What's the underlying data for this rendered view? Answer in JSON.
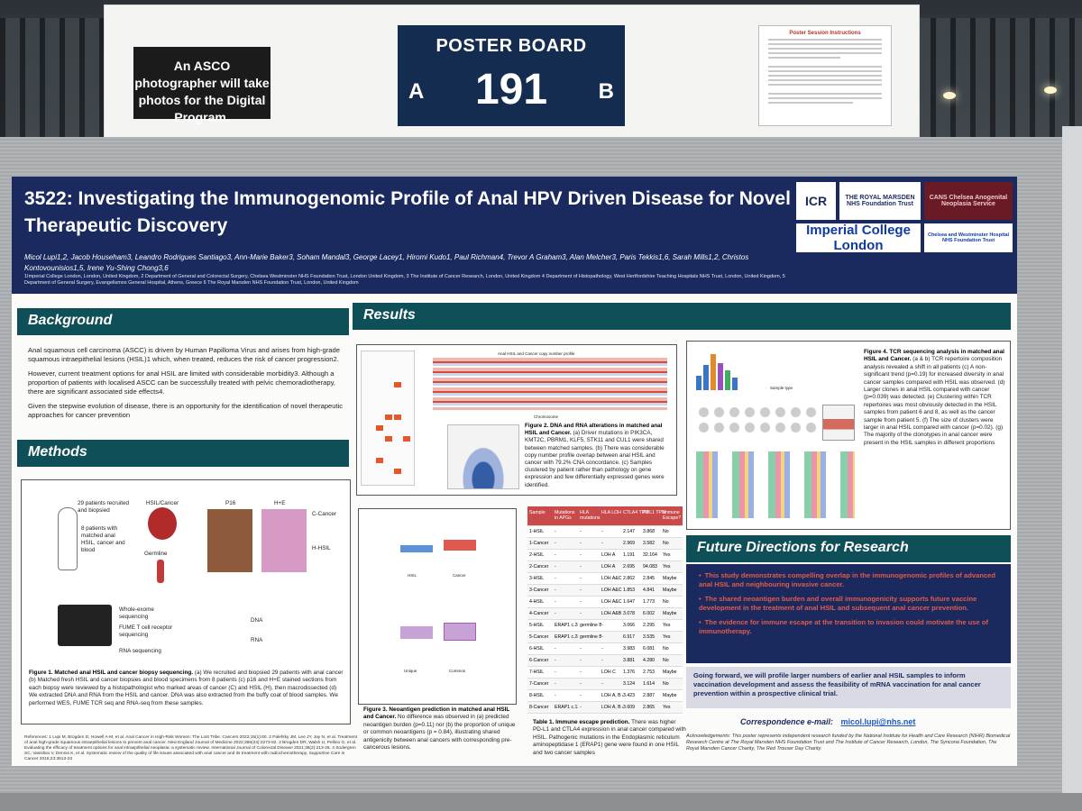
{
  "header": {
    "photo_note": "An ASCO photographer will take photos for the Digital Program.",
    "board_label": "POSTER BOARD",
    "board_number": "191",
    "side_a": "A",
    "side_b": "B",
    "instructions_title": "Poster Session Instructions"
  },
  "poster": {
    "title": "3522: Investigating the Immunogenomic Profile of Anal HPV Driven Disease for Novel Therapeutic Discovery",
    "authors": "Micol Lupi1,2, Jacob Househam3, Leandro Rodrigues Santiago3, Ann-Marie Baker3, Soham Mandal3, George Lacey1, Hiromi Kudo1, Paul Richman4, Trevor A Graham3, Alan Melcher3, Paris Tekkis1,6, Sarah Mills1,2, Christos Kontovounisios1,5, Irene Yu-Shing Chong3,6",
    "affiliations": "1Imperial College London, London, United Kingdom, 2 Department of General and Colorectal Surgery, Chelsea Westminster NHS Foundation Trust, London United Kingdom, 3 The Institute of Cancer Research, London, United Kingdom 4 Department of Histopathology, West Hertfordshire Teaching Hospitals NHS Trust, London, United Kingdom, 5 Department of General Surgery, Evangelismos General Hospital, Athens, Greece 6 The Royal Marsden NHS Foundation Trust, London, United Kingdom",
    "logos": {
      "icr": "ICR",
      "royal_marsden": "THE ROYAL MARSDEN NHS Foundation Trust",
      "imperial": "Imperial College London",
      "cans": "CANS Chelsea Anogenital Neoplasia Service",
      "chelsea": "Chelsea and Westminster Hospital NHS Foundation Trust"
    },
    "background": {
      "heading": "Background",
      "p1": "Anal squamous cell carcinoma (ASCC) is driven by Human Papilloma Virus and arises from high-grade squamous intraepithelial lesions (HSIL)1 which, when treated, reduces the risk of cancer progression2.",
      "p2": "However, current treatment options for anal HSIL are limited with considerable morbidity3. Although a proportion of patients with localised ASCC can be successfully treated with pelvic chemoradiotherapy, there are significant associated side effects4.",
      "p3": "Given the stepwise evolution of disease, there is an opportunity for the identification of novel therapeutic approaches for cancer prevention"
    },
    "methods": {
      "heading": "Methods",
      "labels": {
        "recruited": "29 patients recruited and biopsied",
        "matched": "8 patients with matched anal HSIL, cancer and blood",
        "hsil_cancer": "HSIL/Cancer",
        "germline": "Germline",
        "p16": "P16",
        "he": "H+E",
        "c_cancer": "C-Cancer",
        "h_hsil": "H-HSIL",
        "wes": "Whole-exome sequencing",
        "fume": "FUME T cell receptor sequencing",
        "rna_seq": "RNA sequencing",
        "dna": "DNA",
        "rna": "RNA"
      },
      "caption_title": "Figure 1. Matched anal HSIL and cancer biopsy sequencing.",
      "caption": "(a) We recruited and biopsied 29 patients with anal cancer (b) Matched fresh HSIL and cancer biopsies and blood specimens from 8 patients (c) p16 and H+E stained sections from each biopsy were reviewed by a histopathologist who marked areas of cancer (C) and HSIL (H), then macrodissected (d) We extracted DNA and RNA from the HSIL and cancer. DNA was also extracted from the buffy coat of blood samples. We performed WES, FUME TCR seq and RNA-seq from these samples."
    },
    "references": "References: 1 Lupi M, Brogden D, Howell A-M, et al. Anal Cancer in High-Risk Women: The Lost Tribe. Cancers 2022;15(1):60. 2 Palefsky JM, Lee JY, Jay N, et al. Treatment of anal high-grade squamous intraepithelial lesions to prevent anal cancer. New England Journal of Medicine 2022;386(24):2273-82. 3 Brogden DR, Walsh U, Pellino G, et al. Evaluating the efficacy of treatment options for anal intraepithelial neoplasia: a systematic review. International Journal of Colorectal Disease 2021;36(2):213-26. 4 Sodergren SC, Vassiliou V, Dennis K, et al. Systematic review of the quality of life issues associated with anal cancer and its treatment with radiochemotherapy. Supportive Care in Cancer 2015;23:3613-23",
    "results": {
      "heading": "Results",
      "fig2_title": "Figure 2. DNA and RNA alterations in matched anal HSIL and Cancer.",
      "fig2_caption": "(a) Driver mutations in PIK3CA, KMT2C, PBRM1, KLF5, STK11 and CUL1 were shared between matched samples. (b) There was considerable copy number profile overlap between anal HSIL and cancer with 79.2% CNA concordance. (c) Samples clustered by patient rather than pathology on gene expression and few differentially expressed genes were identified.",
      "fig2_chart_title": "Anal HSIL and Cancer copy number profile",
      "fig2_axis": "Chromosome",
      "fig3_title": "Figure 3. Neoantigen prediction in matched anal HSIL and Cancer.",
      "fig3_caption": "No difference was observed in (a) predicted neoantigen burden (p=0.11) nor (b) the proportion of unique or common neoantigens (p = 0.84), illustrating shared antigenicity between anal cancers with corresponding pre-cancerous lesions.",
      "fig3_x1": "HSIL",
      "fig3_x2": "Cancer",
      "fig3_x3": "Unique",
      "fig3_x4": "Common",
      "table_title": "Table 1. Immune escape prediction.",
      "table_caption": "There was higher PD-L1 and CTLA4 expression in anal cancer compared with HSIL. Pathogenic mutations in the Endoplasmic reticulum aminopeptidase 1 (ERAP1) gene were found in one HSIL and two cancer samples",
      "table_headers": [
        "Sample",
        "Mutations in APGs",
        "HLA mutations",
        "HLA LOH",
        "CTLA4 TPM",
        "PDL1 TPM",
        "Immune Escape?"
      ],
      "table_rows": [
        [
          "1-HSIL",
          "-",
          "-",
          "-",
          "2.147",
          "3.868",
          "No"
        ],
        [
          "1-Cancer",
          "-",
          "-",
          "-",
          "2.969",
          "3.582",
          "No"
        ],
        [
          "2-HSIL",
          "-",
          "-",
          "LOH A",
          "1.191",
          "32.164",
          "Yes"
        ],
        [
          "2-Cancer",
          "-",
          "-",
          "LOH A",
          "2.695",
          "94.083",
          "Yes"
        ],
        [
          "3-HSIL",
          "-",
          "-",
          "LOH A&C",
          "2.862",
          "2.845",
          "Maybe"
        ],
        [
          "3-Cancer",
          "-",
          "-",
          "LOH A&C",
          "1.853",
          "4.841",
          "Maybe"
        ],
        [
          "4-HSIL",
          "-",
          "-",
          "LOH A&C",
          "1.647",
          "1.773",
          "No"
        ],
        [
          "4-Cancer",
          "-",
          "-",
          "LOH A&B",
          "3.078",
          "6.002",
          "Maybe"
        ],
        [
          "5-HSIL",
          "ERAP1 c.2818+2T>C (splice variant)",
          "germline B",
          "-",
          "3.066",
          "2.295",
          "Yes"
        ],
        [
          "5-Cancer",
          "ERAP1 c.2818+2T>C (splice variant)",
          "germline B",
          "-",
          "6.917",
          "3.535",
          "Yes"
        ],
        [
          "6-HSIL",
          "-",
          "-",
          "-",
          "3.983",
          "6.081",
          "No"
        ],
        [
          "6-Cancer",
          "-",
          "-",
          "-",
          "3.881",
          "4.280",
          "No"
        ],
        [
          "7-HSIL",
          "-",
          "-",
          "LOH C",
          "1.376",
          "2.753",
          "Maybe"
        ],
        [
          "7-Cancer",
          "-",
          "-",
          "-",
          "3.124",
          "1.614",
          "No"
        ],
        [
          "8-HSIL",
          "-",
          "-",
          "LOH A, B & C",
          "3.423",
          "2.887",
          "Maybe"
        ],
        [
          "8-Cancer",
          "ERAP1 c.1280G>C (missense)",
          "-",
          "LOH A, B & C",
          "3.609",
          "2.865",
          "Yes"
        ]
      ],
      "fig4_title": "Figure 4. TCR sequencing analysis in matched anal HSIL and Cancer.",
      "fig4_caption": "(a & b) TCR repertoire composition analysis revealed a shift in all patients (c) A non-significant trend (p=0.19) for increased diversity in anal cancer samples compared with HSIL was observed. (d) Larger clones in anal HSIL compared with cancer (p=0.039) was detected. (e) Clustering within TCR repertoires was most obviously detected in the HSIL samples from patient 6 and 8, as well as the cancer sample from patient 5. (f) The size of clusters were larger in anal HSIL compared with cancer (p=0.02). (g) The majority of the clonotypes in anal cancer were present in the HSIL samples in different proportions",
      "fig4_sample_type": "Sample type"
    },
    "future": {
      "heading": "Future Directions for Research",
      "bullets": [
        "This study demonstrates compelling overlap in the immunogenomic profiles of advanced anal HSIL and neighbouring invasive cancer.",
        "The shared neoantigen burden and overall immunogenicity supports future vaccine development in the treatment of anal HSIL and subsequent anal cancer prevention.",
        "The evidence for immune escape at the transition to invasion could motivate the use of immunotherapy."
      ],
      "going_forward": "Going forward, we will profile larger numbers of earlier anal HSIL samples to inform vaccination development and assess the feasibility of mRNA vaccination for anal cancer prevention within a prospective clinical trial.",
      "email_label": "Correspondence e-mail:",
      "email": "micol.lupi@nhs.net",
      "acknowledgements": "Acknowledgements: This poster represents independent research funded by the National Institute for Health and Care Research (NIHR) Biomedical Research Centre at The Royal Marsden NHS Foundation Trust and The Institute of Cancer Research, London, The Syncona Foundation, The Royal Marsden Cancer Charity, The Red Trouser Day Charity."
    }
  },
  "colors": {
    "title_bar": "#1a2a5e",
    "section_head": "#0f4f57",
    "accent_red": "#e55a4a"
  }
}
